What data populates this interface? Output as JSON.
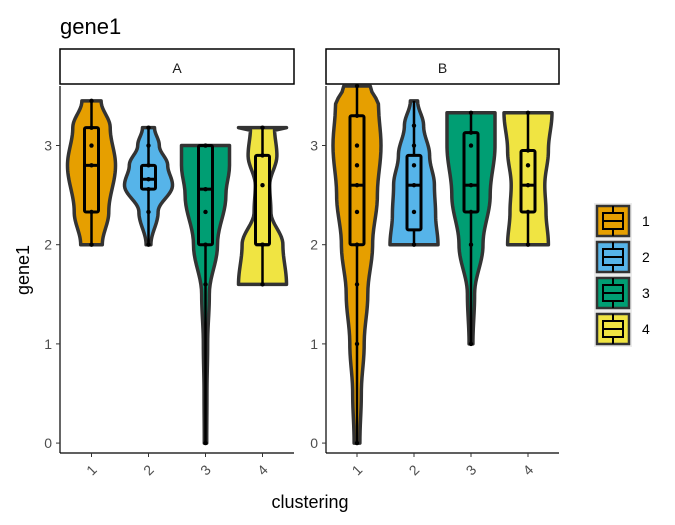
{
  "chart_data": {
    "type": "violin",
    "title": "gene1",
    "xlabel": "clustering",
    "ylabel": "gene1",
    "categories": [
      "1",
      "2",
      "3",
      "4"
    ],
    "legend": {
      "position": "right",
      "entries": [
        {
          "label": "1",
          "color": "#E69F00"
        },
        {
          "label": "2",
          "color": "#56B4E9"
        },
        {
          "label": "3",
          "color": "#009E73"
        },
        {
          "label": "4",
          "color": "#F0E442"
        }
      ]
    },
    "facets": [
      {
        "label": "A",
        "ylim": [
          -0.1,
          3.6
        ],
        "yticks": [
          0,
          1,
          2,
          3
        ],
        "groups": [
          {
            "cluster": "1",
            "min": 2.0,
            "max": 3.45,
            "q1": 2.33,
            "median": 2.8,
            "q3": 3.18,
            "points": [
              2.0,
              2.33,
              2.8,
              3.0,
              3.18,
              3.45
            ],
            "profile": [
              [
                2.0,
                0.45
              ],
              [
                2.33,
                0.72
              ],
              [
                2.8,
                1.0
              ],
              [
                3.18,
                0.78
              ],
              [
                3.45,
                0.4
              ]
            ]
          },
          {
            "cluster": "2",
            "min": 2.0,
            "max": 3.18,
            "q1": 2.56,
            "median": 2.66,
            "q3": 2.8,
            "points": [
              2.0,
              2.33,
              2.56,
              2.66,
              2.8,
              3.0,
              3.18
            ],
            "profile": [
              [
                2.0,
                0.1
              ],
              [
                2.33,
                0.4
              ],
              [
                2.6,
                1.0
              ],
              [
                2.8,
                0.8
              ],
              [
                3.0,
                0.45
              ],
              [
                3.18,
                0.25
              ]
            ]
          },
          {
            "cluster": "3",
            "min": 0.0,
            "max": 3.0,
            "q1": 2.0,
            "median": 2.56,
            "q3": 3.0,
            "points": [
              0.0,
              1.6,
              2.0,
              2.33,
              2.56,
              3.0
            ],
            "profile": [
              [
                0.0,
                0.05
              ],
              [
                0.5,
                0.06
              ],
              [
                1.0,
                0.09
              ],
              [
                1.5,
                0.16
              ],
              [
                2.0,
                0.5
              ],
              [
                2.5,
                0.85
              ],
              [
                2.8,
                1.0
              ],
              [
                3.0,
                1.0
              ]
            ]
          },
          {
            "cluster": "4",
            "min": 1.6,
            "max": 3.18,
            "q1": 2.0,
            "median": 2.0,
            "q3": 2.9,
            "points": [
              1.6,
              2.0,
              2.0,
              2.6,
              2.9,
              3.18
            ],
            "profile": [
              [
                1.6,
                1.0
              ],
              [
                2.0,
                0.85
              ],
              [
                2.33,
                0.35
              ],
              [
                2.6,
                0.3
              ],
              [
                2.9,
                0.6
              ],
              [
                3.18,
                0.5
              ]
            ]
          }
        ]
      },
      {
        "label": "B",
        "ylim": [
          -0.1,
          3.6
        ],
        "yticks": [
          0,
          1,
          2,
          3
        ],
        "groups": [
          {
            "cluster": "1",
            "min": 0.0,
            "max": 3.6,
            "q1": 2.0,
            "median": 2.6,
            "q3": 3.3,
            "points": [
              0.0,
              1.0,
              1.6,
              2.0,
              2.33,
              2.6,
              2.8,
              3.0,
              3.3,
              3.6
            ],
            "profile": [
              [
                0.0,
                0.12
              ],
              [
                0.5,
                0.18
              ],
              [
                1.0,
                0.3
              ],
              [
                1.5,
                0.45
              ],
              [
                2.0,
                0.65
              ],
              [
                2.5,
                0.85
              ],
              [
                3.0,
                1.0
              ],
              [
                3.4,
                0.9
              ],
              [
                3.6,
                0.55
              ]
            ]
          },
          {
            "cluster": "2",
            "min": 2.0,
            "max": 3.45,
            "q1": 2.15,
            "median": 2.6,
            "q3": 2.9,
            "points": [
              2.0,
              2.33,
              2.6,
              2.8,
              3.0,
              3.2
            ],
            "profile": [
              [
                2.0,
                1.0
              ],
              [
                2.3,
                0.9
              ],
              [
                2.6,
                0.85
              ],
              [
                2.9,
                0.65
              ],
              [
                3.2,
                0.4
              ],
              [
                3.45,
                0.15
              ]
            ]
          },
          {
            "cluster": "3",
            "min": 1.0,
            "max": 3.33,
            "q1": 2.33,
            "median": 2.6,
            "q3": 3.13,
            "points": [
              1.0,
              2.0,
              2.33,
              2.6,
              3.0,
              3.13,
              3.33
            ],
            "profile": [
              [
                1.0,
                0.08
              ],
              [
                1.5,
                0.15
              ],
              [
                2.0,
                0.5
              ],
              [
                2.5,
                0.8
              ],
              [
                3.0,
                1.0
              ],
              [
                3.33,
                1.0
              ]
            ]
          },
          {
            "cluster": "4",
            "min": 2.0,
            "max": 3.33,
            "q1": 2.33,
            "median": 2.6,
            "q3": 2.95,
            "points": [
              2.0,
              2.33,
              2.6,
              2.8,
              2.95,
              3.33
            ],
            "profile": [
              [
                2.0,
                0.85
              ],
              [
                2.33,
                0.75
              ],
              [
                2.6,
                0.7
              ],
              [
                2.95,
                0.85
              ],
              [
                3.33,
                1.0
              ]
            ]
          }
        ]
      }
    ]
  }
}
